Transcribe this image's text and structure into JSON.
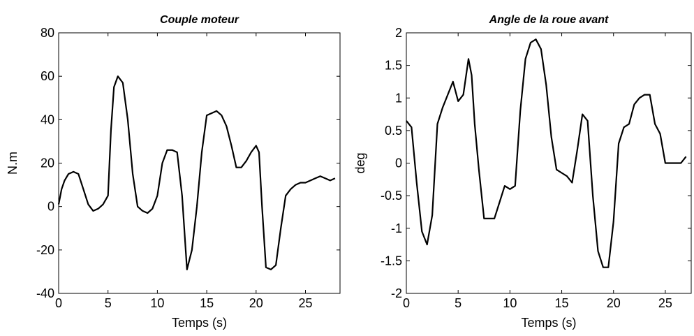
{
  "chart_data": [
    {
      "type": "line",
      "title": "Couple moteur",
      "xlabel": "Temps (s)",
      "ylabel": "N.m",
      "xlim": [
        0,
        28.5
      ],
      "ylim": [
        -40,
        80
      ],
      "xticks": [
        0,
        5,
        10,
        15,
        20,
        25
      ],
      "yticks": [
        -40,
        -20,
        0,
        20,
        40,
        60,
        80
      ],
      "grid": false,
      "series": [
        {
          "x": [
            0,
            0.3,
            0.6,
            1.0,
            1.5,
            2.0,
            2.5,
            3.0,
            3.5,
            4.0,
            4.5,
            5.0,
            5.3,
            5.6,
            6.0,
            6.5,
            7.0,
            7.5,
            8.0,
            8.5,
            9.0,
            9.5,
            10.0,
            10.5,
            11.0,
            11.5,
            12.0,
            12.5,
            13.0,
            13.5,
            14.0,
            14.5,
            15.0,
            15.5,
            16.0,
            16.5,
            17.0,
            17.5,
            18.0,
            18.5,
            19.0,
            19.5,
            20.0,
            20.3,
            20.6,
            21.0,
            21.5,
            22.0,
            22.5,
            23.0,
            23.5,
            24.0,
            24.5,
            25.0,
            25.5,
            26.0,
            26.5,
            27.0,
            27.5,
            28.0
          ],
          "y": [
            1,
            8,
            12,
            15,
            16,
            15,
            8,
            1,
            -2,
            -1,
            1,
            5,
            35,
            55,
            60,
            57,
            40,
            15,
            0,
            -2,
            -3,
            -1,
            5,
            20,
            26,
            26,
            25,
            5,
            -29,
            -20,
            0,
            25,
            42,
            43,
            44,
            42,
            37,
            28,
            18,
            18,
            21,
            25,
            28,
            25,
            0,
            -28,
            -29,
            -27,
            -10,
            5,
            8,
            10,
            11,
            11,
            12,
            13,
            14,
            13,
            12,
            13
          ]
        }
      ]
    },
    {
      "type": "line",
      "title": "Angle de la roue avant",
      "xlabel": "Temps (s)",
      "ylabel": "deg",
      "xlim": [
        0,
        27.5
      ],
      "ylim": [
        -2,
        2
      ],
      "xticks": [
        0,
        5,
        10,
        15,
        20,
        25
      ],
      "yticks": [
        -2,
        -1.5,
        -1,
        -0.5,
        0,
        0.5,
        1,
        1.5,
        2
      ],
      "grid": false,
      "series": [
        {
          "x": [
            0,
            0.5,
            1.0,
            1.5,
            2.0,
            2.5,
            3.0,
            3.5,
            4.0,
            4.5,
            5.0,
            5.5,
            6.0,
            6.3,
            6.6,
            7.0,
            7.5,
            8.0,
            8.5,
            9.0,
            9.5,
            10.0,
            10.5,
            11.0,
            11.5,
            12.0,
            12.5,
            13.0,
            13.5,
            14.0,
            14.5,
            15.0,
            15.5,
            16.0,
            16.5,
            17.0,
            17.5,
            18.0,
            18.5,
            19.0,
            19.5,
            20.0,
            20.5,
            21.0,
            21.5,
            22.0,
            22.5,
            23.0,
            23.5,
            24.0,
            24.5,
            25.0,
            25.5,
            26.0,
            26.5,
            27.0
          ],
          "y": [
            0.65,
            0.55,
            -0.3,
            -1.05,
            -1.25,
            -0.8,
            0.6,
            0.85,
            1.05,
            1.25,
            0.95,
            1.05,
            1.6,
            1.35,
            0.6,
            -0.1,
            -0.85,
            -0.85,
            -0.85,
            -0.6,
            -0.35,
            -0.4,
            -0.35,
            0.8,
            1.6,
            1.85,
            1.9,
            1.75,
            1.2,
            0.4,
            -0.1,
            -0.15,
            -0.2,
            -0.3,
            0.2,
            0.75,
            0.65,
            -0.5,
            -1.35,
            -1.6,
            -1.6,
            -0.9,
            0.3,
            0.55,
            0.6,
            0.9,
            1.0,
            1.05,
            1.05,
            0.6,
            0.45,
            0.0,
            0.0,
            0.0,
            0.0,
            0.1
          ]
        }
      ]
    }
  ]
}
